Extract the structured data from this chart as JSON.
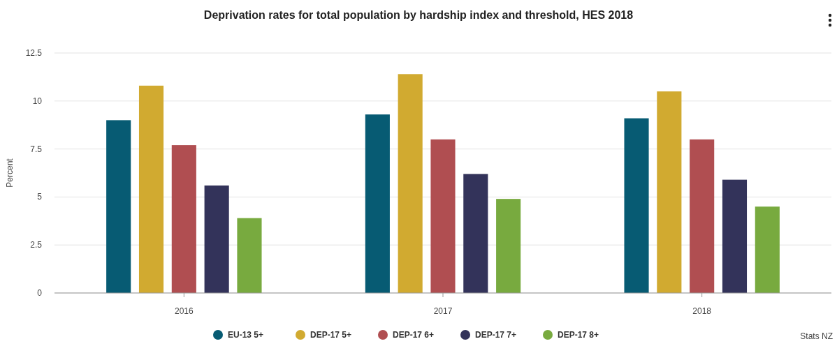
{
  "chart_data": {
    "type": "bar",
    "title": "Deprivation rates for total population by hardship index and threshold, HES 2018",
    "ylabel": "Percent",
    "categories": [
      "2016",
      "2017",
      "2018"
    ],
    "series": [
      {
        "name": "EU-13 5+",
        "color": "#075b73",
        "values": [
          9.0,
          9.3,
          9.1
        ]
      },
      {
        "name": "DEP-17 5+",
        "color": "#d1aa30",
        "values": [
          10.8,
          11.4,
          10.5
        ]
      },
      {
        "name": "DEP-17 6+",
        "color": "#b04e51",
        "values": [
          7.7,
          8.0,
          8.0
        ]
      },
      {
        "name": "DEP-17 7+",
        "color": "#33335a",
        "values": [
          5.6,
          6.2,
          5.9
        ]
      },
      {
        "name": "DEP-17 8+",
        "color": "#78aa3f",
        "values": [
          3.9,
          4.9,
          4.5
        ]
      }
    ],
    "ylim": [
      0,
      12.5
    ],
    "yticks": [
      0,
      2.5,
      5,
      7.5,
      10,
      12.5
    ],
    "grid": "y",
    "legend": "bottom",
    "annotations": [
      "Stats NZ"
    ]
  }
}
